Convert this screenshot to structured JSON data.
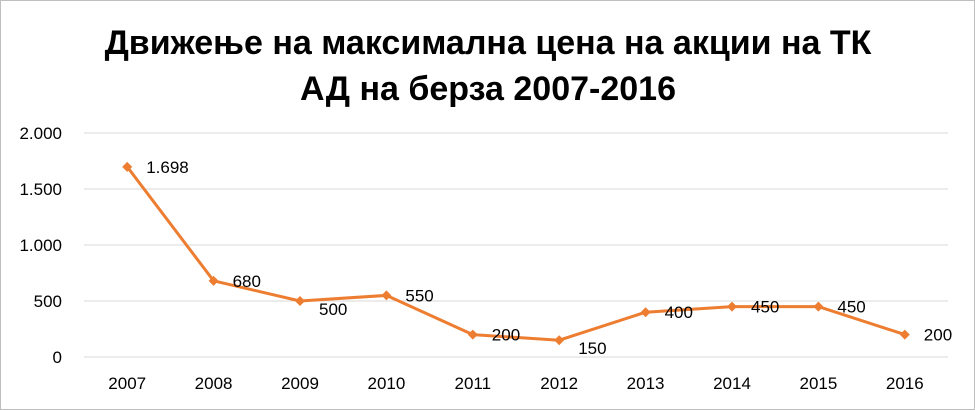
{
  "chart_data": {
    "type": "line",
    "title_line1": "Движење на максимална цена на акции на ТК",
    "title_line2": "АД на берза 2007-2016",
    "categories": [
      "2007",
      "2008",
      "2009",
      "2010",
      "2011",
      "2012",
      "2013",
      "2014",
      "2015",
      "2016"
    ],
    "series": [
      {
        "values": [
          1698,
          680,
          500,
          550,
          200,
          150,
          400,
          450,
          450,
          200
        ],
        "labels": [
          "1.698",
          "680",
          "500",
          "550",
          "200",
          "150",
          "400",
          "450",
          "450",
          "200"
        ],
        "color": "#ed7d31"
      }
    ],
    "ylim": [
      0,
      2000
    ],
    "yticks": [
      0,
      500,
      1000,
      1500,
      2000
    ],
    "ytick_labels": [
      "0",
      "500",
      "1.000",
      "1.500",
      "2.000"
    ],
    "grid": true,
    "legend": "none"
  }
}
